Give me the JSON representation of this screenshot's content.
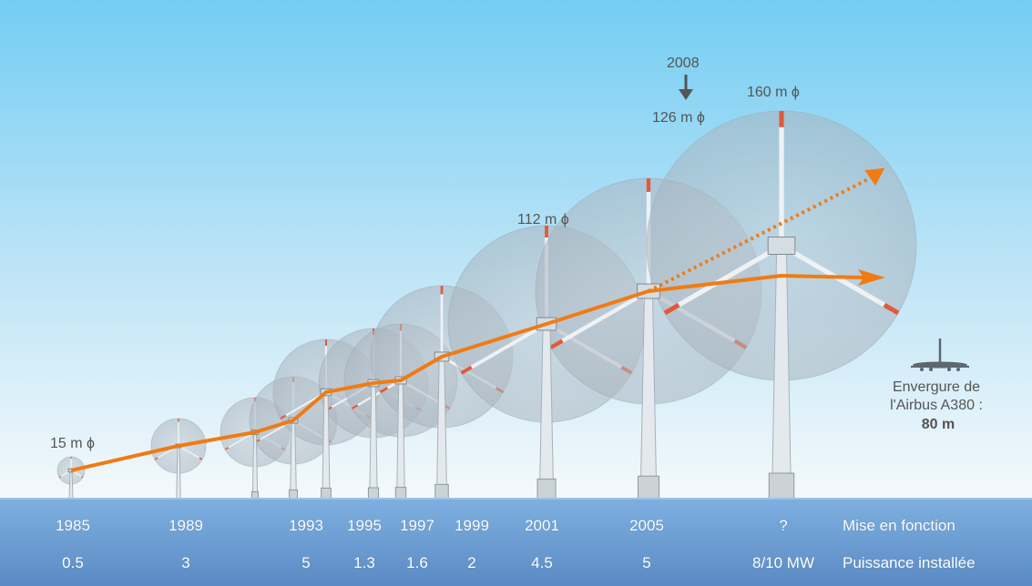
{
  "colors": {
    "sky_top": "#73cdf3",
    "sky_bottom": "#f2f8fb",
    "water": "#6a9ad0",
    "trend": "#f07b14",
    "rotor": "#b7c2cb",
    "tower": "#dfe6ea",
    "foundation": "#f1c99a",
    "blade_tip": "#e05a3a"
  },
  "diameter_labels": {
    "d1985": "15 m ϕ",
    "d2001": "112 m ϕ",
    "d2005": "126 m ϕ",
    "d_future": "160 m ϕ",
    "d2005_year": "2008"
  },
  "airbus": {
    "line1": "Envergure de",
    "line2": "l'Airbus A380 :",
    "line3": "80 m"
  },
  "row_labels": {
    "years": "Mise en fonction",
    "power": "Puissance installée"
  },
  "years": [
    "1985",
    "1989",
    "1993",
    "1995",
    "1997",
    "1999",
    "2001",
    "2005",
    "?"
  ],
  "powers": [
    "0.5",
    "3",
    "5",
    "1.3",
    "1.6",
    "2",
    "4.5",
    "5",
    "8/10 MW"
  ],
  "icons": [
    "arrow-down-icon",
    "airplane-icon"
  ]
}
